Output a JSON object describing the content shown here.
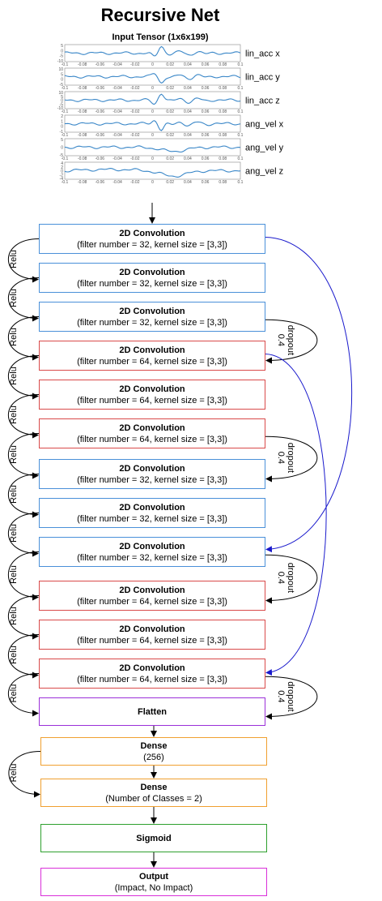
{
  "title": "Recursive Net",
  "input": {
    "label": "Input Tensor (1x6x199)",
    "channels": [
      "lin_acc x",
      "lin_acc y",
      "lin_acc z",
      "ang_vel x",
      "ang_vel y",
      "ang_vel z"
    ],
    "x_ticks": [
      "-0.1",
      "-0.08",
      "-0.06",
      "-0.04",
      "-0.02",
      "0",
      "0.02",
      "0.04",
      "0.06",
      "0.08",
      "0.1"
    ],
    "y_ticks": [
      [
        "5",
        "0",
        "-5",
        "-10"
      ],
      [
        "10",
        "5",
        "0",
        "-5"
      ],
      [
        "10",
        "5",
        "0",
        "-5",
        "-10"
      ],
      [
        "2",
        "1",
        "0",
        "-1"
      ],
      [
        "5",
        "0",
        "-5"
      ],
      [
        "4",
        "2",
        "0",
        "-2",
        "-4"
      ]
    ]
  },
  "layers": [
    {
      "name": "2D Convolution",
      "detail": "(filter number = 32, kernel size = [3,3])",
      "color": "#4a90d9"
    },
    {
      "name": "2D Convolution",
      "detail": "(filter number = 32, kernel size = [3,3])",
      "color": "#4a90d9"
    },
    {
      "name": "2D Convolution",
      "detail": "(filter number = 32, kernel size = [3,3])",
      "color": "#4a90d9"
    },
    {
      "name": "2D Convolution",
      "detail": "(filter number = 64, kernel size = [3,3])",
      "color": "#d94a4a"
    },
    {
      "name": "2D Convolution",
      "detail": "(filter number = 64, kernel size = [3,3])",
      "color": "#d94a4a"
    },
    {
      "name": "2D Convolution",
      "detail": "(filter number = 64, kernel size = [3,3])",
      "color": "#d94a4a"
    },
    {
      "name": "2D Convolution",
      "detail": "(filter number = 32, kernel size = [3,3])",
      "color": "#4a90d9"
    },
    {
      "name": "2D Convolution",
      "detail": "(filter number = 32, kernel size = [3,3])",
      "color": "#4a90d9"
    },
    {
      "name": "2D Convolution",
      "detail": "(filter number = 32, kernel size = [3,3])",
      "color": "#4a90d9"
    },
    {
      "name": "2D Convolution",
      "detail": "(filter number = 64, kernel size = [3,3])",
      "color": "#d94a4a"
    },
    {
      "name": "2D Convolution",
      "detail": "(filter number = 64, kernel size = [3,3])",
      "color": "#d94a4a"
    },
    {
      "name": "2D Convolution",
      "detail": "(filter number = 64, kernel size = [3,3])",
      "color": "#d94a4a"
    },
    {
      "name": "Flatten",
      "detail": "",
      "color": "#9b30d9"
    },
    {
      "name": "Dense",
      "detail": "(256)",
      "color": "#f0a030"
    },
    {
      "name": "Dense",
      "detail": "(Number of Classes = 2)",
      "color": "#f0a030"
    },
    {
      "name": "Sigmoid",
      "detail": "",
      "color": "#2ea02e"
    },
    {
      "name": "Output",
      "detail": "(Impact, No Impact)",
      "color": "#d930d9"
    }
  ],
  "relu_label": "Relu",
  "dropout": {
    "label": "dropout",
    "value": "0.4"
  },
  "skip_color": "#1a1acc"
}
